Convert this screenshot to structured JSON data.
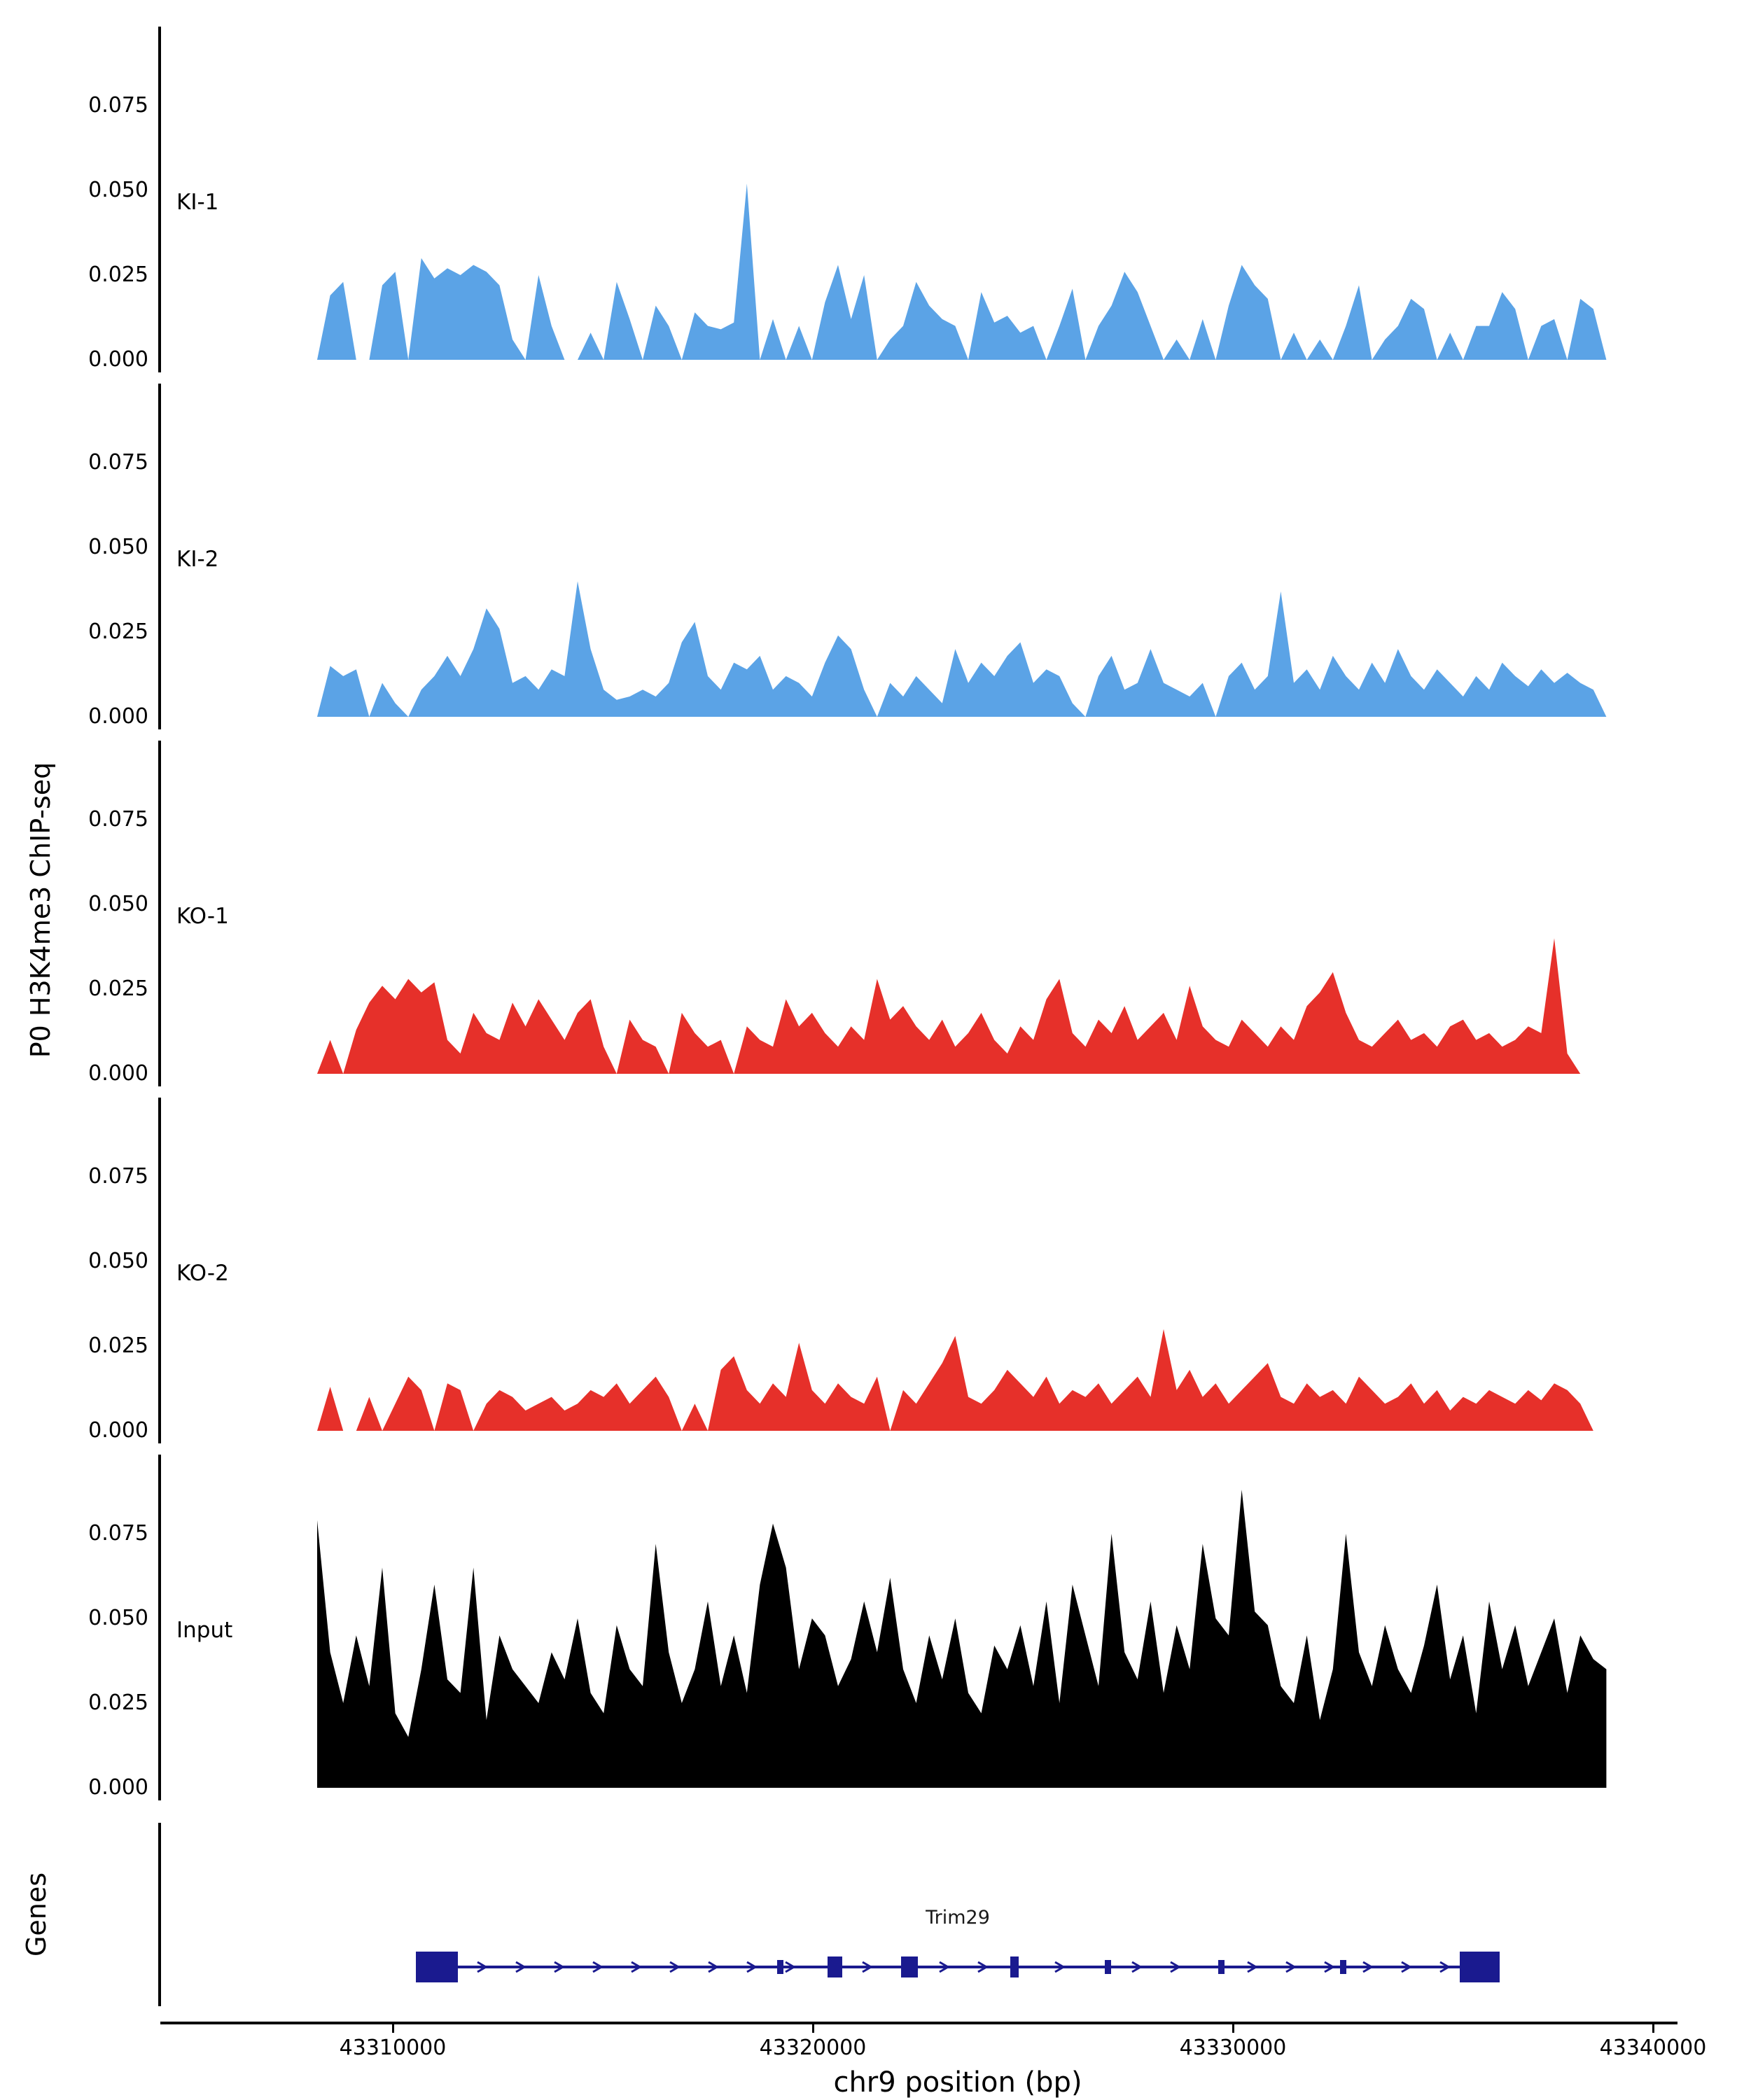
{
  "figure": {
    "y_axis_label": "P0 H3K4me3 ChIP-seq",
    "genes_axis_label": "Genes",
    "x_axis_label": "chr9 position (bp)",
    "y_ticks": [
      {
        "label": "0.075",
        "value": 0.075
      },
      {
        "label": "0.050",
        "value": 0.05
      },
      {
        "label": "0.025",
        "value": 0.025
      },
      {
        "label": "0.000",
        "value": 0.0
      }
    ],
    "x_ticks": [
      {
        "label": "43310000",
        "value": 43310000
      },
      {
        "label": "43320000",
        "value": 43320000
      },
      {
        "label": "43330000",
        "value": 43330000
      },
      {
        "label": "43340000",
        "value": 43340000
      }
    ]
  },
  "chart_data": {
    "type": "area",
    "title": "",
    "xlabel": "chr9 position (bp)",
    "ylabel": "P0 H3K4me3 ChIP-seq",
    "x_start": 43308200,
    "x_step": 310,
    "xlim": [
      43304500,
      43340500
    ],
    "ylim": [
      0,
      0.094
    ],
    "grid": false,
    "legend": "track labels inside panels",
    "track_labels": [
      "KI-1",
      "KI-2",
      "KO-1",
      "KO-2",
      "Input"
    ],
    "series": [
      {
        "name": "KI-1",
        "color": "#5BA3E6",
        "values": [
          0,
          0.019,
          0.023,
          0,
          0,
          0.022,
          0.026,
          0,
          0.03,
          0.024,
          0.027,
          0.025,
          0.028,
          0.026,
          0.022,
          0.006,
          0,
          0.025,
          0.01,
          0,
          0,
          0.008,
          0,
          0.023,
          0.012,
          0,
          0.016,
          0.01,
          0,
          0.014,
          0.01,
          0.009,
          0.011,
          0.052,
          0,
          0.012,
          0,
          0.01,
          0,
          0.017,
          0.028,
          0.012,
          0.025,
          0,
          0.006,
          0.01,
          0.023,
          0.016,
          0.012,
          0.01,
          0,
          0.02,
          0.011,
          0.013,
          0.008,
          0.01,
          0,
          0.01,
          0.021,
          0,
          0.01,
          0.016,
          0.026,
          0.02,
          0.01,
          0,
          0.006,
          0,
          0.012,
          0,
          0.016,
          0.028,
          0.022,
          0.018,
          0,
          0.008,
          0,
          0.006,
          0,
          0.01,
          0.022,
          0,
          0.006,
          0.01,
          0.018,
          0.015,
          0,
          0.008,
          0,
          0.01,
          0.01,
          0.02,
          0.015,
          0,
          0.01,
          0.012,
          0,
          0.018,
          0.015,
          0
        ]
      },
      {
        "name": "KI-2",
        "color": "#5BA3E6",
        "values": [
          0,
          0.015,
          0.012,
          0.014,
          0,
          0.01,
          0.004,
          0,
          0.008,
          0.012,
          0.018,
          0.012,
          0.02,
          0.032,
          0.026,
          0.01,
          0.012,
          0.008,
          0.014,
          0.012,
          0.04,
          0.02,
          0.008,
          0.005,
          0.006,
          0.008,
          0.006,
          0.01,
          0.022,
          0.028,
          0.012,
          0.008,
          0.016,
          0.014,
          0.018,
          0.008,
          0.012,
          0.01,
          0.006,
          0.016,
          0.024,
          0.02,
          0.008,
          0,
          0.01,
          0.006,
          0.012,
          0.008,
          0.004,
          0.02,
          0.01,
          0.016,
          0.012,
          0.018,
          0.022,
          0.01,
          0.014,
          0.012,
          0.004,
          0,
          0.012,
          0.018,
          0.008,
          0.01,
          0.02,
          0.01,
          0.008,
          0.006,
          0.01,
          0,
          0.012,
          0.016,
          0.008,
          0.012,
          0.037,
          0.01,
          0.014,
          0.008,
          0.018,
          0.012,
          0.008,
          0.016,
          0.01,
          0.02,
          0.012,
          0.008,
          0.014,
          0.01,
          0.006,
          0.012,
          0.008,
          0.016,
          0.012,
          0.009,
          0.014,
          0.01,
          0.013,
          0.01,
          0.008,
          0
        ]
      },
      {
        "name": "KO-1",
        "color": "#E6302A",
        "values": [
          0,
          0.01,
          0,
          0.013,
          0.021,
          0.026,
          0.022,
          0.028,
          0.024,
          0.027,
          0.01,
          0.006,
          0.018,
          0.012,
          0.01,
          0.021,
          0.014,
          0.022,
          0.016,
          0.01,
          0.018,
          0.022,
          0.008,
          0,
          0.016,
          0.01,
          0.008,
          0,
          0.018,
          0.012,
          0.008,
          0.01,
          0,
          0.014,
          0.01,
          0.008,
          0.022,
          0.014,
          0.018,
          0.012,
          0.008,
          0.014,
          0.01,
          0.028,
          0.016,
          0.02,
          0.014,
          0.01,
          0.016,
          0.008,
          0.012,
          0.018,
          0.01,
          0.006,
          0.014,
          0.01,
          0.022,
          0.028,
          0.012,
          0.008,
          0.016,
          0.012,
          0.02,
          0.01,
          0.014,
          0.018,
          0.01,
          0.026,
          0.014,
          0.01,
          0.008,
          0.016,
          0.012,
          0.008,
          0.014,
          0.01,
          0.02,
          0.024,
          0.03,
          0.018,
          0.01,
          0.008,
          0.012,
          0.016,
          0.01,
          0.012,
          0.008,
          0.014,
          0.016,
          0.01,
          0.012,
          0.008,
          0.01,
          0.014,
          0.012,
          0.04,
          0.006,
          0,
          0,
          0
        ]
      },
      {
        "name": "KO-2",
        "color": "#E6302A",
        "values": [
          0,
          0.013,
          0,
          0,
          0.01,
          0,
          0.008,
          0.016,
          0.012,
          0,
          0.014,
          0.012,
          0,
          0.008,
          0.012,
          0.01,
          0.006,
          0.008,
          0.01,
          0.006,
          0.008,
          0.012,
          0.01,
          0.014,
          0.008,
          0.012,
          0.016,
          0.01,
          0,
          0.008,
          0,
          0.018,
          0.022,
          0.012,
          0.008,
          0.014,
          0.01,
          0.026,
          0.012,
          0.008,
          0.014,
          0.01,
          0.008,
          0.016,
          0,
          0.012,
          0.008,
          0.014,
          0.02,
          0.028,
          0.01,
          0.008,
          0.012,
          0.018,
          0.014,
          0.01,
          0.016,
          0.008,
          0.012,
          0.01,
          0.014,
          0.008,
          0.012,
          0.016,
          0.01,
          0.03,
          0.012,
          0.018,
          0.01,
          0.014,
          0.008,
          0.012,
          0.016,
          0.02,
          0.01,
          0.008,
          0.014,
          0.01,
          0.012,
          0.008,
          0.016,
          0.012,
          0.008,
          0.01,
          0.014,
          0.008,
          0.012,
          0.006,
          0.01,
          0.008,
          0.012,
          0.01,
          0.008,
          0.012,
          0.009,
          0.014,
          0.012,
          0.008,
          0,
          0
        ]
      },
      {
        "name": "Input",
        "color": "#000000",
        "values": [
          0.079,
          0.04,
          0.025,
          0.045,
          0.03,
          0.065,
          0.022,
          0.015,
          0.035,
          0.06,
          0.032,
          0.028,
          0.065,
          0.02,
          0.045,
          0.035,
          0.03,
          0.025,
          0.04,
          0.032,
          0.05,
          0.028,
          0.022,
          0.048,
          0.035,
          0.03,
          0.072,
          0.04,
          0.025,
          0.035,
          0.055,
          0.03,
          0.045,
          0.028,
          0.06,
          0.078,
          0.065,
          0.035,
          0.05,
          0.045,
          0.03,
          0.038,
          0.055,
          0.04,
          0.062,
          0.035,
          0.025,
          0.045,
          0.032,
          0.05,
          0.028,
          0.022,
          0.042,
          0.035,
          0.048,
          0.03,
          0.055,
          0.025,
          0.06,
          0.045,
          0.03,
          0.075,
          0.04,
          0.032,
          0.055,
          0.028,
          0.048,
          0.035,
          0.072,
          0.05,
          0.045,
          0.088,
          0.052,
          0.048,
          0.03,
          0.025,
          0.045,
          0.02,
          0.035,
          0.075,
          0.04,
          0.03,
          0.048,
          0.035,
          0.028,
          0.042,
          0.06,
          0.032,
          0.045,
          0.022,
          0.055,
          0.035,
          0.048,
          0.03,
          0.04,
          0.05,
          0.028,
          0.045,
          0.038,
          0.035
        ]
      }
    ],
    "gene_track": {
      "label": "Trim29",
      "color": "#1A1A8F",
      "strand": "+",
      "start": 43310550,
      "end": 43336350,
      "exons": [
        {
          "start": 43310550,
          "end": 43311550,
          "size": "tall"
        },
        {
          "start": 43319150,
          "end": 43319300,
          "size": "small"
        },
        {
          "start": 43320350,
          "end": 43320700,
          "size": "mid"
        },
        {
          "start": 43322100,
          "end": 43322500,
          "size": "mid"
        },
        {
          "start": 43324700,
          "end": 43324900,
          "size": "mid"
        },
        {
          "start": 43326950,
          "end": 43327100,
          "size": "small"
        },
        {
          "start": 43329650,
          "end": 43329800,
          "size": "small"
        },
        {
          "start": 43332550,
          "end": 43332700,
          "size": "small"
        },
        {
          "start": 43335400,
          "end": 43336350,
          "size": "tall"
        }
      ]
    }
  }
}
